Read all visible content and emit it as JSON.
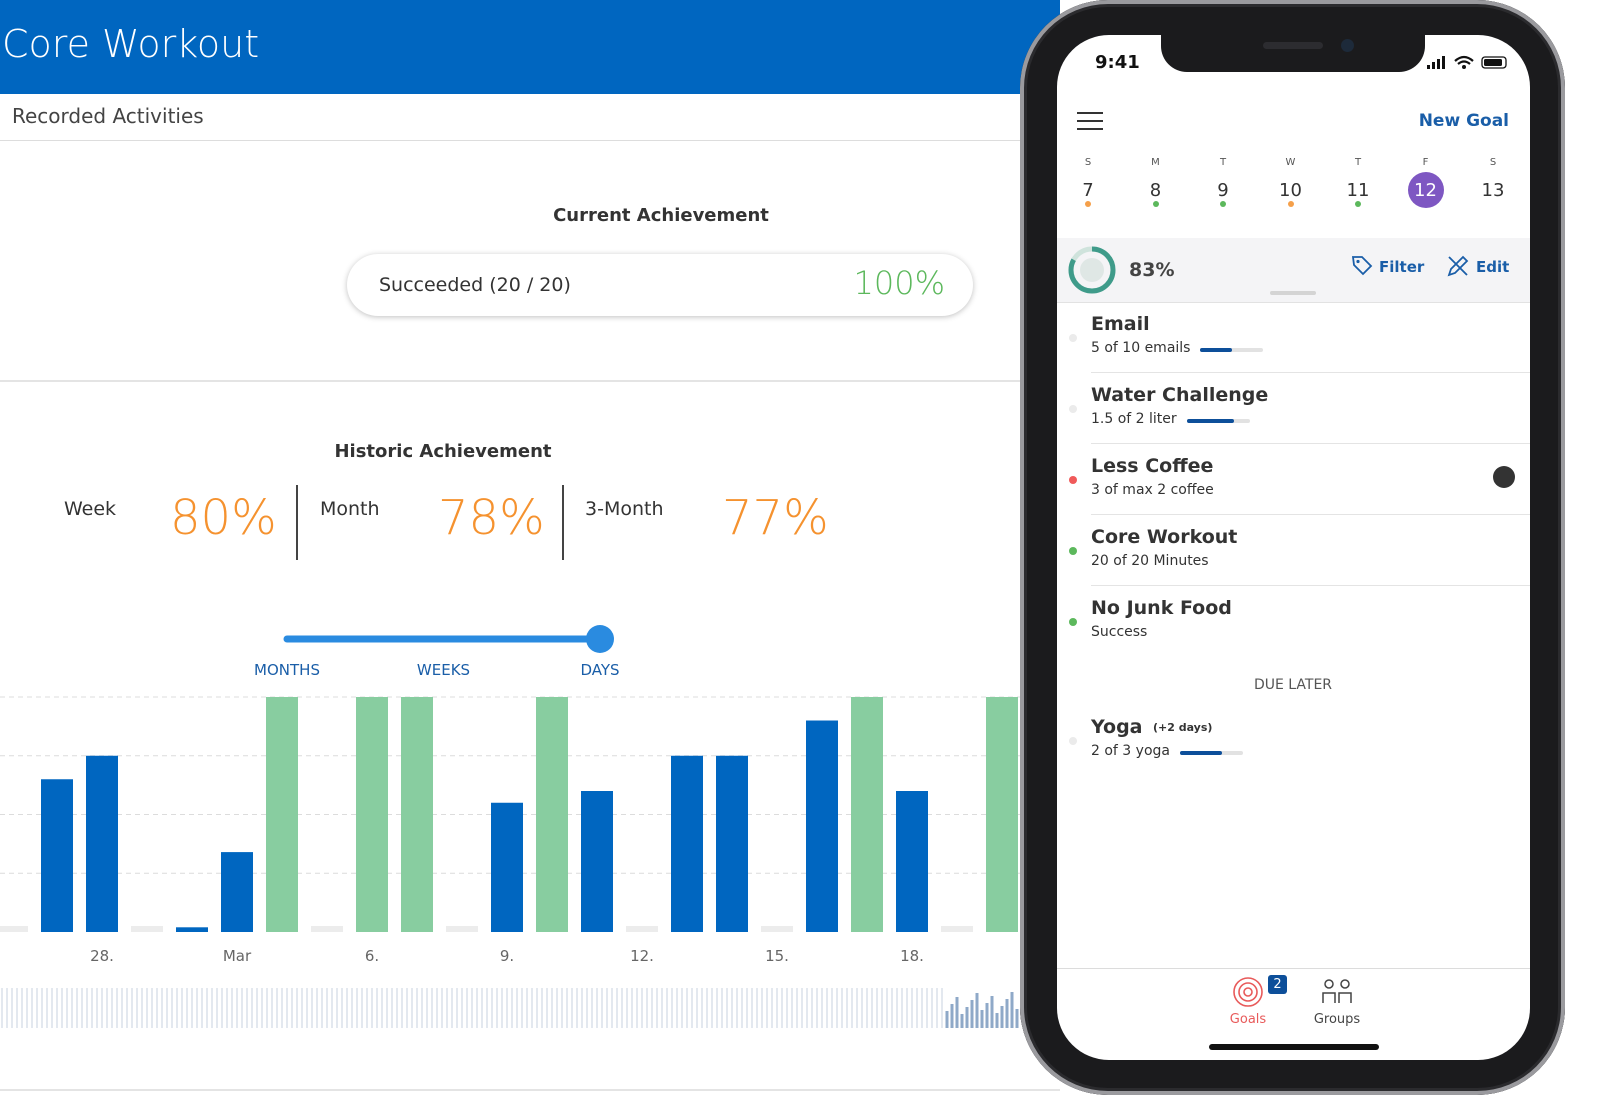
{
  "header": {
    "title": "Core Workout"
  },
  "tab": "Recorded Activities",
  "current": {
    "title": "Current Achievement",
    "label": "Succeeded (20 / 20)",
    "value": "100%"
  },
  "historic": {
    "title": "Historic Achievement",
    "stats": [
      {
        "label": "Week",
        "value": "80%"
      },
      {
        "label": "Month",
        "value": "78%"
      },
      {
        "label": "3-Month",
        "value": "77%"
      }
    ]
  },
  "range_slider": {
    "options": [
      "MONTHS",
      "WEEKS",
      "DAYS"
    ],
    "selected": 2
  },
  "chart_data": {
    "type": "bar",
    "categories": [
      null,
      null,
      "28.",
      null,
      null,
      "Mar",
      null,
      null,
      "6.",
      null,
      null,
      "9.",
      null,
      null,
      "12.",
      null,
      null,
      "15.",
      null,
      null,
      "18.",
      null,
      null
    ],
    "values": [
      0,
      65,
      75,
      0,
      2,
      34,
      100,
      0,
      100,
      100,
      0,
      55,
      100,
      60,
      0,
      75,
      75,
      0,
      90,
      100,
      60,
      0,
      100
    ],
    "color": "#0066c0",
    "goal_color": "#88cda0",
    "empty_color": "#ececec",
    "ylim": [
      0,
      100
    ],
    "grid_values": [
      25,
      50,
      75,
      100
    ]
  },
  "phone": {
    "time": "9:41",
    "action": "New Goal",
    "week": [
      {
        "day": "S",
        "date": 7,
        "dot": "#f5a04a"
      },
      {
        "day": "M",
        "date": 8,
        "dot": "#5cb85c"
      },
      {
        "day": "T",
        "date": 9,
        "dot": "#5cb85c"
      },
      {
        "day": "W",
        "date": 10,
        "dot": "#f5a04a"
      },
      {
        "day": "T",
        "date": 11,
        "dot": "#5cb85c"
      },
      {
        "day": "F",
        "date": 12
      },
      {
        "day": "S",
        "date": 13
      }
    ],
    "selected_day": 5,
    "summary": {
      "value": 83,
      "label": "83%"
    },
    "filter": "Filter",
    "edit": "Edit",
    "goals": [
      {
        "name": "Email",
        "detail": "5 of 10 emails",
        "progress": 0.5,
        "dot": "#ebebeb"
      },
      {
        "name": "Water Challenge",
        "detail": "1.5 of 2 liter",
        "progress": 0.75,
        "dot": "#ebebeb"
      },
      {
        "name": "Less Coffee",
        "detail": "3 of max 2 coffee",
        "dot": "#f05a5a"
      },
      {
        "name": "Core Workout",
        "detail": "20 of 20 Minutes",
        "dot": "#5cb85c"
      },
      {
        "name": "No Junk Food",
        "detail": "Success",
        "dot": "#5cb85c"
      }
    ],
    "due_later": {
      "title": "DUE LATER",
      "goals": [
        {
          "name": "Yoga",
          "note": "(+2 days)",
          "detail": "2 of 3 yoga",
          "progress": 0.67,
          "dot": "#ebebeb"
        }
      ]
    },
    "tabs": [
      {
        "label": "Goals",
        "badge": 2,
        "active": true
      },
      {
        "label": "Groups"
      }
    ]
  }
}
